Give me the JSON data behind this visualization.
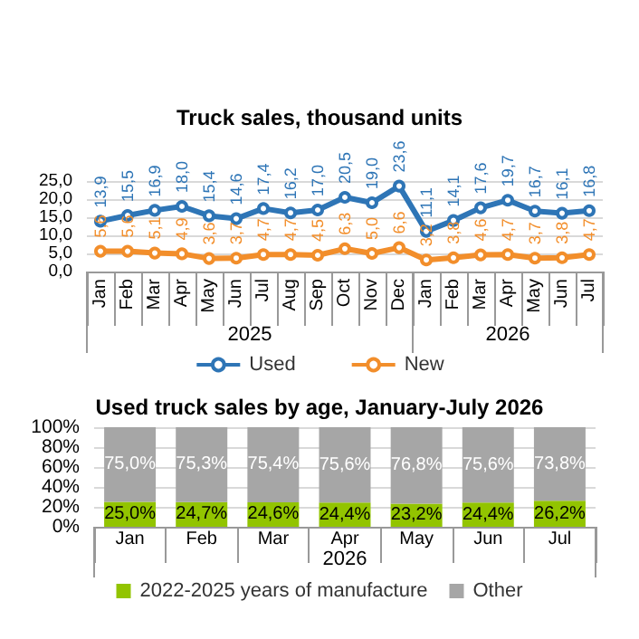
{
  "chart_data": [
    {
      "type": "line",
      "title": "Truck sales, thousand units",
      "categories": [
        "Jan",
        "Feb",
        "Mar",
        "Apr",
        "May",
        "Jun",
        "Jul",
        "Aug",
        "Sep",
        "Oct",
        "Nov",
        "Dec",
        "Jan",
        "Feb",
        "Mar",
        "Apr",
        "May",
        "Jun",
        "Jul"
      ],
      "annotations": [
        "2025",
        "2026"
      ],
      "series": [
        {
          "name": "Used",
          "color": "#2e75b6",
          "values": [
            13.9,
            15.5,
            16.9,
            18.0,
            15.4,
            14.6,
            17.4,
            16.2,
            17.0,
            20.5,
            19.0,
            23.6,
            11.1,
            14.1,
            17.6,
            19.7,
            16.7,
            16.1,
            16.8
          ],
          "value_labels": [
            "13,9",
            "15,5",
            "16,9",
            "18,0",
            "15,4",
            "14,6",
            "17,4",
            "16,2",
            "17,0",
            "20,5",
            "19,0",
            "23,6",
            "11,1",
            "14,1",
            "17,6",
            "19,7",
            "16,7",
            "16,1",
            "16,8"
          ]
        },
        {
          "name": "New",
          "color": "#f28e2b",
          "values": [
            5.6,
            5.6,
            5.1,
            4.9,
            3.6,
            3.7,
            4.7,
            4.7,
            4.5,
            6.3,
            5.0,
            6.6,
            3.2,
            3.8,
            4.6,
            4.7,
            3.7,
            3.8,
            4.7
          ],
          "value_labels": [
            "5,6",
            "5,6",
            "5,1",
            "4,9",
            "3,6",
            "3,7",
            "4,7",
            "4,7",
            "4,5",
            "6,3",
            "5,0",
            "6,6",
            "3,2",
            "3,8",
            "4,6",
            "4,7",
            "3,7",
            "3,8",
            "4,7"
          ]
        }
      ],
      "ylim": [
        0,
        25
      ],
      "yticks": [
        {
          "value": 0,
          "label": "0,0"
        },
        {
          "value": 5,
          "label": "5,0"
        },
        {
          "value": 10,
          "label": "10,0"
        },
        {
          "value": 15,
          "label": "15,0"
        },
        {
          "value": 20,
          "label": "20,0"
        },
        {
          "value": 25,
          "label": "25,0"
        }
      ],
      "grid": "y",
      "legend": "bottom",
      "marker": "circle",
      "line_style": "solid"
    },
    {
      "type": "bar",
      "title": "Used truck sales by age, January-July 2026",
      "categories": [
        "Jan",
        "Feb",
        "Mar",
        "Apr",
        "May",
        "Jun",
        "Jul"
      ],
      "annotations": [
        "2026"
      ],
      "stacked": true,
      "series": [
        {
          "name": "2022-2025 years of manufacture",
          "color": "#92c400",
          "values": [
            25.0,
            24.7,
            24.6,
            24.4,
            23.2,
            24.4,
            26.2
          ],
          "value_labels": [
            "25,0%",
            "24,7%",
            "24,6%",
            "24,4%",
            "23,2%",
            "24,4%",
            "26,2%"
          ]
        },
        {
          "name": "Other",
          "color": "#a6a6a6",
          "values": [
            75.0,
            75.3,
            75.4,
            75.6,
            76.8,
            75.6,
            73.8
          ],
          "value_labels": [
            "75,0%",
            "75,3%",
            "75,4%",
            "75,6%",
            "76,8%",
            "75,6%",
            "73,8%"
          ]
        }
      ],
      "ylim": [
        0,
        100
      ],
      "yticks": [
        {
          "value": 0,
          "label": "0%"
        },
        {
          "value": 20,
          "label": "20%"
        },
        {
          "value": 40,
          "label": "40%"
        },
        {
          "value": 60,
          "label": "60%"
        },
        {
          "value": 80,
          "label": "80%"
        },
        {
          "value": 100,
          "label": "100%"
        }
      ],
      "grid": "y",
      "legend": "bottom"
    }
  ]
}
